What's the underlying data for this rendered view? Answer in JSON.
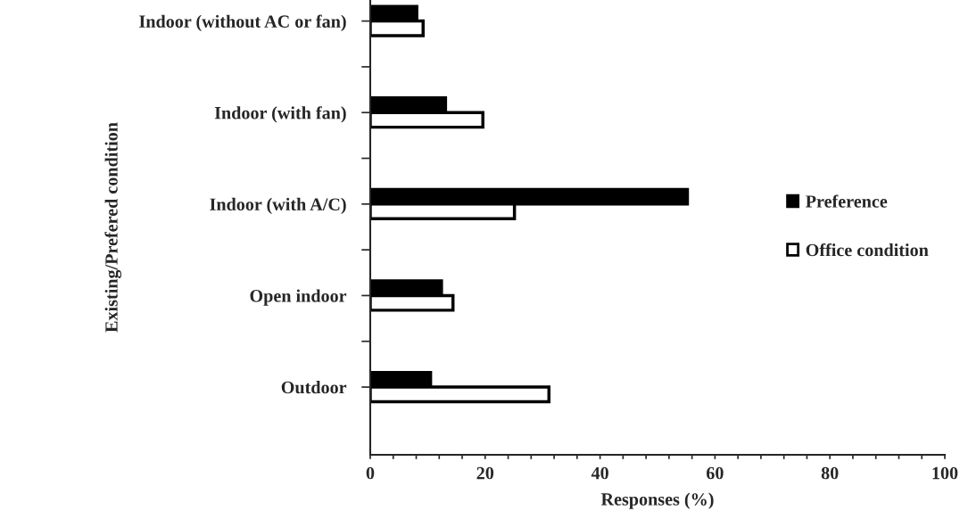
{
  "chart_data": {
    "type": "bar",
    "orientation": "horizontal",
    "xlabel": "Responses (%)",
    "ylabel": "Existing/Prefered condition",
    "categories": [
      "Indoor (without AC or fan)",
      "Indoor (with fan)",
      "Indoor (with A/C)",
      "Open indoor",
      "Outdoor"
    ],
    "series": [
      {
        "name": "Preference",
        "color": "#000000",
        "values": [
          8.1,
          13.1,
          55.2,
          12.4,
          10.5
        ]
      },
      {
        "name": "Office condition",
        "color": "#ffffff",
        "values": [
          9.2,
          19.6,
          25.1,
          14.4,
          31.1
        ]
      }
    ],
    "xlim": [
      0,
      100
    ],
    "xticks": [
      0,
      {
        "value": 4,
        "label": null
      },
      {
        "value": 8,
        "label": null
      },
      {
        "value": 12,
        "label": null
      },
      {
        "value": 16,
        "label": null
      },
      20,
      {
        "value": 24,
        "label": null
      },
      {
        "value": 28,
        "label": null
      },
      {
        "value": 32,
        "label": null
      },
      {
        "value": 36,
        "label": null
      },
      40,
      {
        "value": 44,
        "label": null
      },
      {
        "value": 48,
        "label": null
      },
      {
        "value": 52,
        "label": null
      },
      {
        "value": 56,
        "label": null
      },
      60,
      {
        "value": 64,
        "label": null
      },
      {
        "value": 68,
        "label": null
      },
      {
        "value": 72,
        "label": null
      },
      {
        "value": 76,
        "label": null
      },
      80,
      {
        "value": 84,
        "label": null
      },
      {
        "value": 88,
        "label": null
      },
      {
        "value": 92,
        "label": null
      },
      {
        "value": 96,
        "label": null
      },
      100
    ],
    "grid": false,
    "legend": "right"
  }
}
